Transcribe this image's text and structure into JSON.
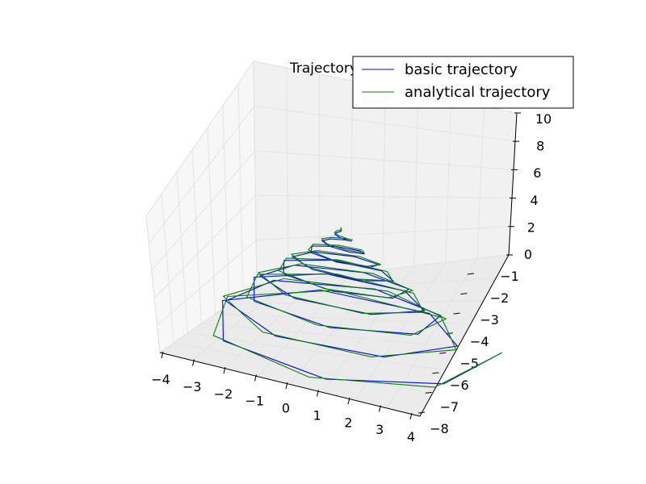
{
  "chart_data": {
    "type": "line",
    "projection": "3d",
    "title": "Trajectory",
    "xlabel": "",
    "ylabel": "",
    "zlabel": "",
    "xlim": [
      -4,
      4
    ],
    "ylim": [
      -8,
      -1
    ],
    "zlim": [
      0,
      10
    ],
    "grid": true,
    "legend_position": "top-right",
    "x_ticks": [
      "−4",
      "−3",
      "−2",
      "−1",
      "0",
      "1",
      "2",
      "3",
      "4"
    ],
    "y_ticks": [
      "−8",
      "−7",
      "−6",
      "−5",
      "−4",
      "−3",
      "−2",
      "−1"
    ],
    "z_ticks": [
      "0",
      "2",
      "4",
      "6",
      "8",
      "10"
    ],
    "series": [
      {
        "name": "basic trajectory",
        "color": "#0000ff",
        "polygon_sides": 6.5,
        "start_point": [
          3.8,
          -1.6,
          0.0
        ],
        "apex": [
          0.0,
          -4.5,
          6.7
        ],
        "max_radius": 4.0,
        "turns": 9
      },
      {
        "name": "analytical trajectory",
        "color": "#008000",
        "polygon_sides": 6.5,
        "start_point": [
          3.8,
          -1.6,
          0.0
        ],
        "apex": [
          0.0,
          -4.5,
          6.8
        ],
        "max_radius": 4.1,
        "turns": 9
      }
    ]
  }
}
